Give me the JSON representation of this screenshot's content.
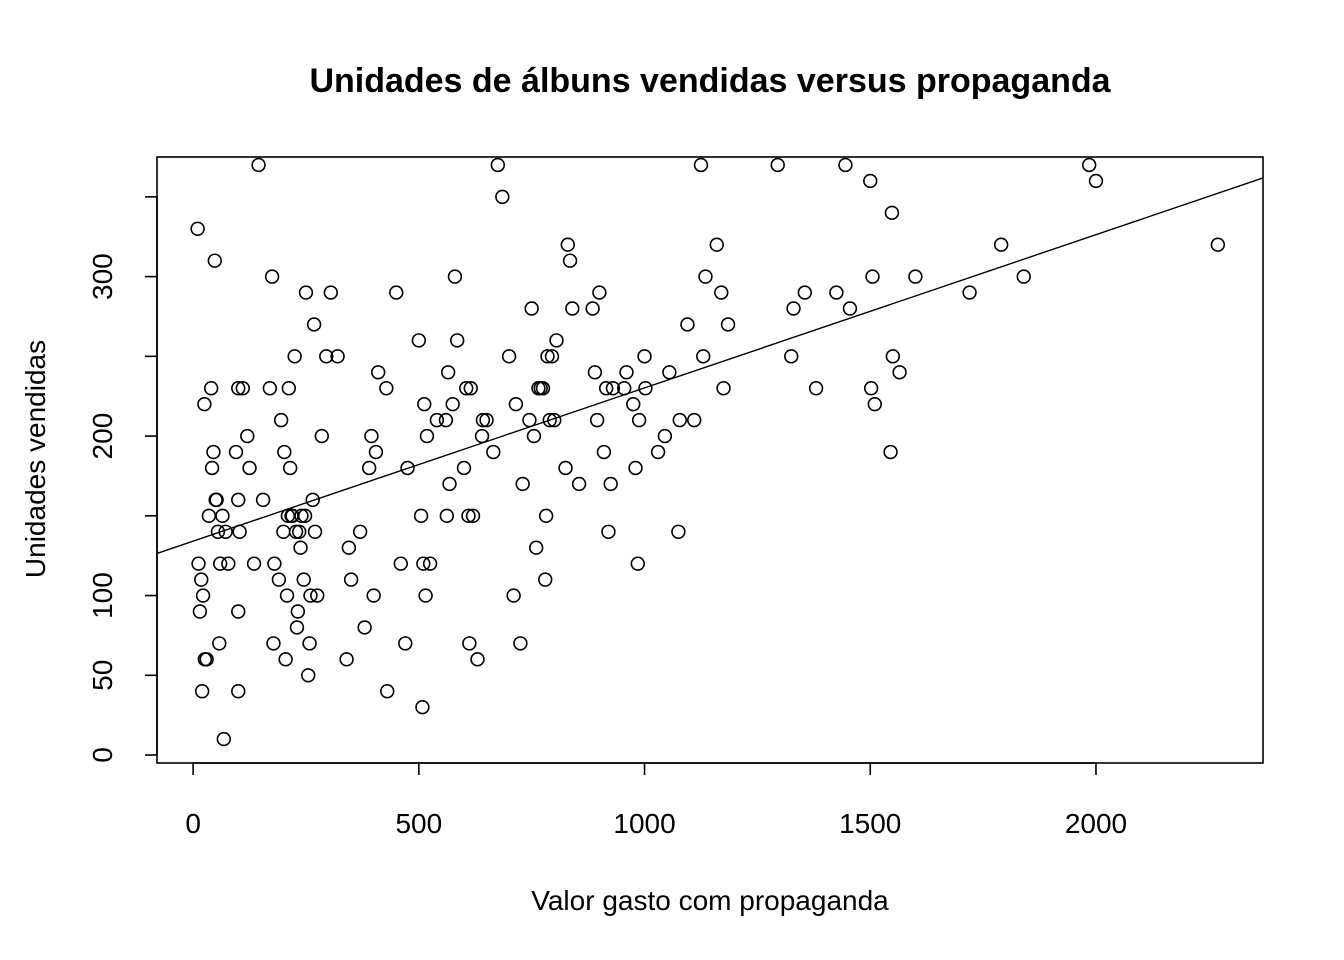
{
  "chart_data": {
    "type": "scatter",
    "title": "Unidades de álbuns vendidas versus propaganda",
    "xlabel": "Valor gasto com propaganda",
    "ylabel": "Unidades vendidas",
    "xlim": [
      -80,
      2370
    ],
    "ylim": [
      -5,
      375
    ],
    "x_ticks": [
      0,
      500,
      1000,
      1500,
      2000
    ],
    "x_tick_labels": [
      "0",
      "500",
      "1000",
      "1500",
      "2000"
    ],
    "y_ticks": [
      0,
      50,
      100,
      150,
      200,
      250,
      300,
      350
    ],
    "y_tick_labels": [
      "0",
      "50",
      "100",
      "",
      "200",
      "",
      "300",
      ""
    ],
    "regression_line": {
      "intercept": 134.1,
      "slope": 0.0961
    },
    "points": [
      [
        10,
        330
      ],
      [
        12,
        120
      ],
      [
        15,
        90
      ],
      [
        18,
        110
      ],
      [
        20,
        40
      ],
      [
        22,
        100
      ],
      [
        25,
        220
      ],
      [
        26,
        60
      ],
      [
        30,
        60
      ],
      [
        35,
        150
      ],
      [
        40,
        230
      ],
      [
        42,
        180
      ],
      [
        45,
        190
      ],
      [
        48,
        310
      ],
      [
        50,
        160
      ],
      [
        52,
        160
      ],
      [
        55,
        140
      ],
      [
        58,
        70
      ],
      [
        60,
        120
      ],
      [
        65,
        150
      ],
      [
        68,
        10
      ],
      [
        72,
        140
      ],
      [
        78,
        120
      ],
      [
        95,
        190
      ],
      [
        100,
        40
      ],
      [
        100,
        90
      ],
      [
        100,
        160
      ],
      [
        100,
        230
      ],
      [
        103,
        140
      ],
      [
        110,
        230
      ],
      [
        120,
        200
      ],
      [
        125,
        180
      ],
      [
        135,
        120
      ],
      [
        145,
        370
      ],
      [
        155,
        160
      ],
      [
        170,
        230
      ],
      [
        175,
        300
      ],
      [
        178,
        70
      ],
      [
        180,
        120
      ],
      [
        190,
        110
      ],
      [
        195,
        210
      ],
      [
        200,
        140
      ],
      [
        202,
        190
      ],
      [
        205,
        60
      ],
      [
        208,
        100
      ],
      [
        210,
        150
      ],
      [
        212,
        230
      ],
      [
        215,
        180
      ],
      [
        218,
        150
      ],
      [
        220,
        150
      ],
      [
        225,
        250
      ],
      [
        228,
        140
      ],
      [
        230,
        80
      ],
      [
        232,
        90
      ],
      [
        235,
        140
      ],
      [
        238,
        130
      ],
      [
        240,
        150
      ],
      [
        245,
        110
      ],
      [
        248,
        150
      ],
      [
        250,
        290
      ],
      [
        255,
        50
      ],
      [
        258,
        70
      ],
      [
        260,
        100
      ],
      [
        265,
        160
      ],
      [
        268,
        270
      ],
      [
        270,
        140
      ],
      [
        275,
        100
      ],
      [
        285,
        200
      ],
      [
        295,
        250
      ],
      [
        305,
        290
      ],
      [
        320,
        250
      ],
      [
        340,
        60
      ],
      [
        345,
        130
      ],
      [
        350,
        110
      ],
      [
        370,
        140
      ],
      [
        380,
        80
      ],
      [
        390,
        180
      ],
      [
        395,
        200
      ],
      [
        400,
        100
      ],
      [
        405,
        190
      ],
      [
        410,
        240
      ],
      [
        428,
        230
      ],
      [
        430,
        40
      ],
      [
        450,
        290
      ],
      [
        460,
        120
      ],
      [
        470,
        70
      ],
      [
        475,
        180
      ],
      [
        500,
        260
      ],
      [
        505,
        150
      ],
      [
        508,
        30
      ],
      [
        510,
        120
      ],
      [
        512,
        220
      ],
      [
        515,
        100
      ],
      [
        518,
        200
      ],
      [
        525,
        120
      ],
      [
        540,
        210
      ],
      [
        560,
        210
      ],
      [
        562,
        150
      ],
      [
        565,
        240
      ],
      [
        568,
        170
      ],
      [
        575,
        220
      ],
      [
        580,
        300
      ],
      [
        585,
        260
      ],
      [
        600,
        180
      ],
      [
        605,
        230
      ],
      [
        610,
        150
      ],
      [
        612,
        70
      ],
      [
        615,
        230
      ],
      [
        620,
        150
      ],
      [
        630,
        60
      ],
      [
        640,
        200
      ],
      [
        642,
        210
      ],
      [
        650,
        210
      ],
      [
        665,
        190
      ],
      [
        675,
        370
      ],
      [
        685,
        350
      ],
      [
        700,
        250
      ],
      [
        710,
        100
      ],
      [
        715,
        220
      ],
      [
        725,
        70
      ],
      [
        730,
        170
      ],
      [
        745,
        210
      ],
      [
        750,
        280
      ],
      [
        755,
        200
      ],
      [
        760,
        130
      ],
      [
        765,
        230
      ],
      [
        770,
        230
      ],
      [
        775,
        230
      ],
      [
        780,
        110
      ],
      [
        782,
        150
      ],
      [
        785,
        250
      ],
      [
        790,
        210
      ],
      [
        795,
        250
      ],
      [
        800,
        210
      ],
      [
        805,
        260
      ],
      [
        825,
        180
      ],
      [
        830,
        320
      ],
      [
        835,
        310
      ],
      [
        840,
        280
      ],
      [
        855,
        170
      ],
      [
        885,
        280
      ],
      [
        890,
        240
      ],
      [
        895,
        210
      ],
      [
        900,
        290
      ],
      [
        910,
        190
      ],
      [
        915,
        230
      ],
      [
        920,
        140
      ],
      [
        925,
        170
      ],
      [
        930,
        230
      ],
      [
        955,
        230
      ],
      [
        960,
        240
      ],
      [
        975,
        220
      ],
      [
        980,
        180
      ],
      [
        985,
        120
      ],
      [
        988,
        210
      ],
      [
        1000,
        250
      ],
      [
        1002,
        230
      ],
      [
        1030,
        190
      ],
      [
        1045,
        200
      ],
      [
        1055,
        240
      ],
      [
        1075,
        140
      ],
      [
        1078,
        210
      ],
      [
        1095,
        270
      ],
      [
        1110,
        210
      ],
      [
        1125,
        370
      ],
      [
        1130,
        250
      ],
      [
        1135,
        300
      ],
      [
        1160,
        320
      ],
      [
        1170,
        290
      ],
      [
        1175,
        230
      ],
      [
        1185,
        270
      ],
      [
        1295,
        370
      ],
      [
        1325,
        250
      ],
      [
        1330,
        280
      ],
      [
        1355,
        290
      ],
      [
        1380,
        230
      ],
      [
        1425,
        290
      ],
      [
        1445,
        370
      ],
      [
        1455,
        280
      ],
      [
        1500,
        360
      ],
      [
        1502,
        230
      ],
      [
        1505,
        300
      ],
      [
        1510,
        220
      ],
      [
        1545,
        190
      ],
      [
        1548,
        340
      ],
      [
        1550,
        250
      ],
      [
        1565,
        240
      ],
      [
        1600,
        300
      ],
      [
        1720,
        290
      ],
      [
        1790,
        320
      ],
      [
        1840,
        300
      ],
      [
        1985,
        370
      ],
      [
        2000,
        360
      ],
      [
        2270,
        320
      ]
    ]
  }
}
